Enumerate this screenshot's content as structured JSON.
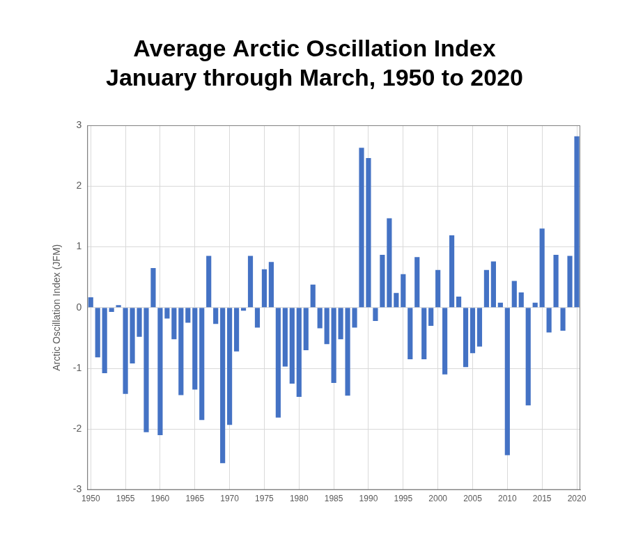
{
  "chart_data": {
    "type": "bar",
    "title": [
      "Average Arctic Oscillation Index",
      "January through March, 1950 to 2020"
    ],
    "y_label": "Arctic Oscillation Index (JFM)",
    "categories": [
      "1950",
      null,
      null,
      null,
      null,
      "1955",
      null,
      null,
      null,
      null,
      "1960",
      null,
      null,
      null,
      null,
      "1965",
      null,
      null,
      null,
      null,
      "1970",
      null,
      null,
      null,
      null,
      "1975",
      null,
      null,
      null,
      null,
      "1980",
      null,
      null,
      null,
      null,
      "1985",
      null,
      null,
      null,
      null,
      "1990",
      null,
      null,
      null,
      null,
      "1995",
      null,
      null,
      null,
      null,
      "2000",
      null,
      null,
      null,
      null,
      "2005",
      null,
      null,
      null,
      null,
      "2010",
      null,
      null,
      null,
      null,
      "2015",
      null,
      null,
      null,
      null,
      "2020"
    ],
    "values": [
      0.17,
      -0.82,
      -1.08,
      -0.07,
      0.04,
      -1.42,
      -0.92,
      -0.48,
      -2.05,
      0.65,
      -2.1,
      -0.18,
      -0.52,
      -1.44,
      -0.25,
      -1.35,
      -1.85,
      0.85,
      -0.27,
      -2.56,
      -1.93,
      -0.72,
      -0.05,
      0.85,
      -0.33,
      0.63,
      0.75,
      -1.81,
      -0.97,
      -1.25,
      -1.47,
      -0.7,
      0.38,
      -0.34,
      -0.6,
      -1.24,
      -0.52,
      -1.45,
      -0.33,
      2.63,
      2.46,
      -0.22,
      0.87,
      1.47,
      0.24,
      0.55,
      -0.85,
      0.83,
      -0.85,
      -0.3,
      0.62,
      -1.1,
      1.19,
      0.18,
      -0.98,
      -0.75,
      -0.64,
      0.62,
      0.76,
      0.08,
      -2.43,
      0.44,
      0.25,
      -1.61,
      0.08,
      1.3,
      -0.41,
      0.87,
      -0.38,
      0.85,
      2.82
    ],
    "color": "#4472c4",
    "ylim": [
      -3,
      3
    ],
    "yticks": [
      -3,
      -2,
      -1,
      0,
      1,
      2,
      3
    ],
    "grid": true
  }
}
